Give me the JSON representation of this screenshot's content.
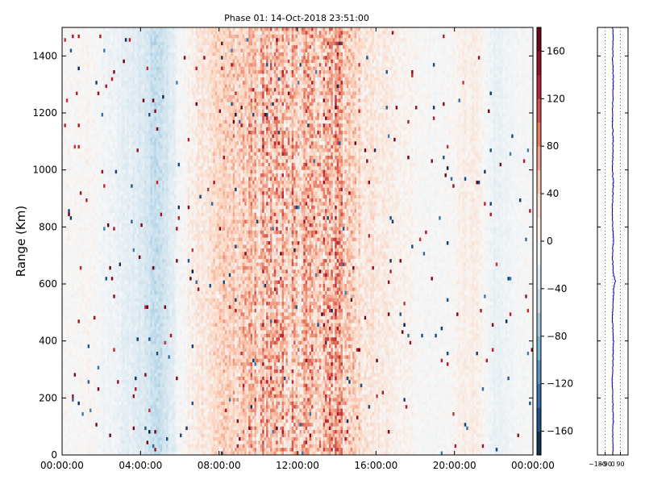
{
  "chart_data": [
    {
      "type": "heatmap",
      "title": "Phase 01: 14-Oct-2018 23:51:00",
      "xlabel": "",
      "ylabel": "Range (Km)",
      "x_ticks": [
        "00:00:00",
        "04:00:00",
        "08:00:00",
        "12:00:00",
        "16:00:00",
        "20:00:00",
        "00:00:00"
      ],
      "xlim_hours": [
        0,
        24
      ],
      "y_ticks": [
        0,
        200,
        400,
        600,
        800,
        1000,
        1200,
        1400
      ],
      "ylim": [
        0,
        1500
      ],
      "grid": false,
      "colormap": "RdBu_r",
      "colorbar": {
        "min": -180,
        "max": 180,
        "ticks": [
          -160,
          -120,
          -80,
          -40,
          0,
          40,
          80,
          120,
          160
        ],
        "tick_labels": [
          "−160",
          "−120",
          "−80",
          "−40",
          "0",
          "40",
          "80",
          "120",
          "160"
        ],
        "colors": [
          "#08213f",
          "#2b67a5",
          "#78b3d5",
          "#cfe3ee",
          "#f7f7f7",
          "#fbd0b9",
          "#e87b62",
          "#b2182b",
          "#5a0012"
        ]
      },
      "column_profile": {
        "hours": [
          0,
          1.5,
          2.5,
          4,
          4.7,
          5.3,
          6,
          7,
          8,
          9,
          10,
          10.8,
          12,
          13,
          13.8,
          15,
          16,
          17,
          18,
          19,
          20,
          21,
          22,
          23,
          24
        ],
        "mean": [
          0,
          2,
          -10,
          -28,
          -52,
          -40,
          -5,
          20,
          35,
          38,
          48,
          60,
          48,
          45,
          60,
          30,
          18,
          8,
          3,
          -5,
          5,
          15,
          -15,
          -5,
          0
        ],
        "spread": [
          12,
          14,
          16,
          18,
          20,
          18,
          16,
          28,
          38,
          55,
          75,
          95,
          80,
          80,
          95,
          45,
          28,
          18,
          14,
          14,
          14,
          16,
          14,
          12,
          12
        ]
      }
    },
    {
      "type": "line",
      "title": "",
      "x_ticks": [
        "−180",
        "−90",
        "0",
        "90"
      ],
      "xlim": [
        -180,
        180
      ],
      "ylim": [
        0,
        1500
      ],
      "grid": true,
      "color": "#0000bb",
      "series_note_free": true,
      "profile": {
        "baseline": 0,
        "range_km": [
          0,
          60,
          120,
          200,
          260,
          330,
          400,
          470,
          520,
          580,
          610,
          640,
          700,
          760,
          800,
          850,
          900,
          960,
          1000,
          1080,
          1150,
          1200,
          1260,
          1320,
          1380,
          1440,
          1500
        ],
        "mean_phase": [
          4,
          -2,
          6,
          0,
          -6,
          3,
          8,
          -4,
          2,
          10,
          30,
          4,
          -3,
          6,
          0,
          -8,
          2,
          5,
          -3,
          4,
          0,
          -5,
          3,
          6,
          -2,
          4,
          0
        ]
      }
    }
  ]
}
